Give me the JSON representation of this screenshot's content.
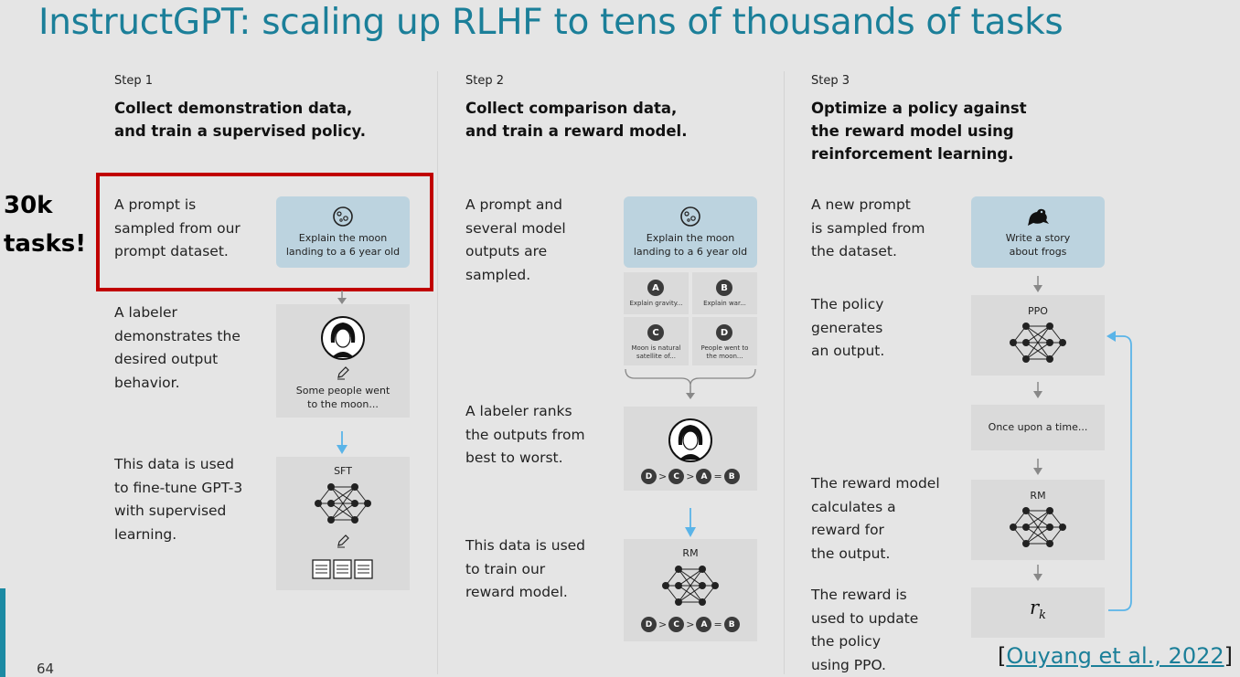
{
  "title": "InstructGPT: scaling up RLHF to tens of thousands of tasks",
  "badge": {
    "line1": "30k",
    "line2": "tasks!"
  },
  "step1": {
    "label": "Step 1",
    "heading1": "Collect demonstration data,",
    "heading2": "and train a supervised policy.",
    "desc1": [
      "A prompt is",
      "sampled from our",
      "prompt dataset."
    ],
    "prompt_box": [
      "Explain the moon",
      "landing to a 6 year old"
    ],
    "desc2": [
      "A labeler",
      "demonstrates the",
      "desired output",
      "behavior."
    ],
    "demo_text": [
      "Some people went",
      "to the moon..."
    ],
    "desc3": [
      "This data is used",
      "to fine-tune GPT-3",
      "with supervised",
      "learning."
    ],
    "model_label": "SFT"
  },
  "step2": {
    "label": "Step 2",
    "heading1": "Collect comparison data,",
    "heading2": "and train a reward model.",
    "desc1": [
      "A prompt and",
      "several model",
      "outputs are",
      "sampled."
    ],
    "prompt_box": [
      "Explain the moon",
      "landing to a 6 year old"
    ],
    "outputs": [
      {
        "letter": "A",
        "text": [
          "Explain gravity..."
        ]
      },
      {
        "letter": "B",
        "text": [
          "Explain war..."
        ]
      },
      {
        "letter": "C",
        "text": [
          "Moon is natural",
          "satellite of..."
        ]
      },
      {
        "letter": "D",
        "text": [
          "People went to",
          "the moon..."
        ]
      }
    ],
    "desc2": [
      "A labeler ranks",
      "the outputs from",
      "best to worst."
    ],
    "ranking": [
      "D",
      ">",
      "C",
      ">",
      "A",
      "=",
      "B"
    ],
    "desc3": [
      "This data is used",
      "to train our",
      "reward model."
    ],
    "model_label": "RM"
  },
  "step3": {
    "label": "Step 3",
    "heading1": "Optimize a policy against",
    "heading2": "the reward model using",
    "heading3": "reinforcement learning.",
    "desc1": [
      "A new prompt",
      "is sampled from",
      "the dataset."
    ],
    "prompt_box": [
      "Write a story",
      "about frogs"
    ],
    "desc2": [
      "The policy",
      "generates",
      "an output."
    ],
    "policy_label": "PPO",
    "output_text": "Once upon a time...",
    "desc3": [
      "The reward model",
      "calculates a",
      "reward for",
      "the output."
    ],
    "rm_label": "RM",
    "reward_symbol": "r",
    "reward_sub": "k",
    "desc4": [
      "The reward is",
      "used to update",
      "the policy",
      "using PPO."
    ]
  },
  "citation": {
    "open": "[",
    "text": "Ouyang et al., 2022",
    "close": "]"
  },
  "page_number": "64",
  "colors": {
    "title": "#1b7f99",
    "highlight": "#c00000",
    "arrow_blue": "#5ab4e8",
    "prompt_box": "#bcd3df"
  }
}
